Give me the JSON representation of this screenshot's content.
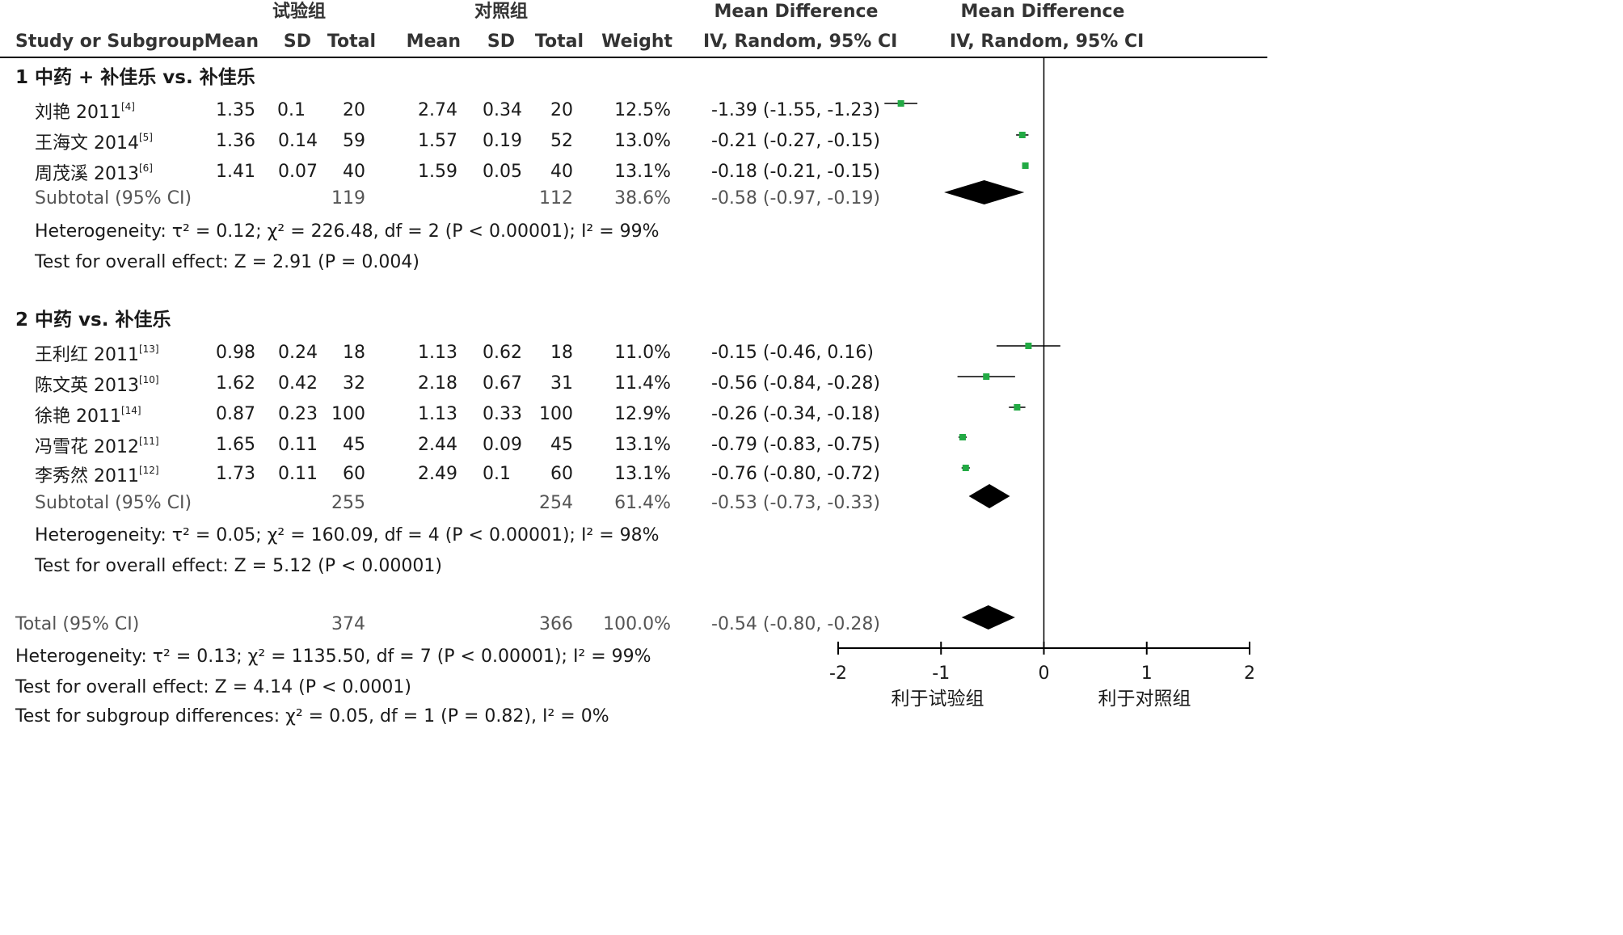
{
  "headers": {
    "group_exp": "试验组",
    "group_ctrl": "对照组",
    "study": "Study or Subgroup",
    "mean": "Mean",
    "sd": "SD",
    "total": "Total",
    "weight": "Weight",
    "md_title": "Mean Difference",
    "md_method": "IV, Random, 95% CI",
    "plot_title": "Mean Difference",
    "plot_method": "IV, Random, 95% CI"
  },
  "subgroups": [
    {
      "title": "1 中药 + 补佳乐 vs. 补佳乐",
      "studies": [
        {
          "name": "刘艳 2011",
          "ref": "[4]",
          "exp_mean": "1.35",
          "exp_sd": "0.1",
          "exp_total": "20",
          "ctrl_mean": "2.74",
          "ctrl_sd": "0.34",
          "ctrl_total": "20",
          "weight": "12.5%",
          "ci_text": "-1.39 (-1.55, -1.23)"
        },
        {
          "name": "王海文 2014",
          "ref": "[5]",
          "exp_mean": "1.36",
          "exp_sd": "0.14",
          "exp_total": "59",
          "ctrl_mean": "1.57",
          "ctrl_sd": "0.19",
          "ctrl_total": "52",
          "weight": "13.0%",
          "ci_text": "-0.21 (-0.27, -0.15)"
        },
        {
          "name": "周茂溪 2013",
          "ref": "[6]",
          "exp_mean": "1.41",
          "exp_sd": "0.07",
          "exp_total": "40",
          "ctrl_mean": "1.59",
          "ctrl_sd": "0.05",
          "ctrl_total": "40",
          "weight": "13.1%",
          "ci_text": "-0.18 (-0.21, -0.15)"
        }
      ],
      "subtotal": {
        "label": "Subtotal (95% CI)",
        "exp_total": "119",
        "ctrl_total": "112",
        "weight": "38.6%",
        "ci_text": "-0.58 (-0.97, -0.19)"
      },
      "heterogeneity": "Heterogeneity: τ² = 0.12; χ² = 226.48, df = 2 (P < 0.00001); I² = 99%",
      "overall": "Test for overall effect: Z = 2.91 (P = 0.004)"
    },
    {
      "title": "2 中药 vs. 补佳乐",
      "studies": [
        {
          "name": "王利红 2011",
          "ref": "[13]",
          "exp_mean": "0.98",
          "exp_sd": "0.24",
          "exp_total": "18",
          "ctrl_mean": "1.13",
          "ctrl_sd": "0.62",
          "ctrl_total": "18",
          "weight": "11.0%",
          "ci_text": "-0.15 (-0.46, 0.16)"
        },
        {
          "name": "陈文英 2013",
          "ref": "[10]",
          "exp_mean": "1.62",
          "exp_sd": "0.42",
          "exp_total": "32",
          "ctrl_mean": "2.18",
          "ctrl_sd": "0.67",
          "ctrl_total": "31",
          "weight": "11.4%",
          "ci_text": "-0.56 (-0.84, -0.28)"
        },
        {
          "name": "徐艳 2011",
          "ref": "[14]",
          "exp_mean": "0.87",
          "exp_sd": "0.23",
          "exp_total": "100",
          "ctrl_mean": "1.13",
          "ctrl_sd": "0.33",
          "ctrl_total": "100",
          "weight": "12.9%",
          "ci_text": "-0.26 (-0.34, -0.18)"
        },
        {
          "name": "冯雪花 2012",
          "ref": "[11]",
          "exp_mean": "1.65",
          "exp_sd": "0.11",
          "exp_total": "45",
          "ctrl_mean": "2.44",
          "ctrl_sd": "0.09",
          "ctrl_total": "45",
          "weight": "13.1%",
          "ci_text": "-0.79 (-0.83, -0.75)"
        },
        {
          "name": "李秀然 2011",
          "ref": "[12]",
          "exp_mean": "1.73",
          "exp_sd": "0.11",
          "exp_total": "60",
          "ctrl_mean": "2.49",
          "ctrl_sd": "0.1",
          "ctrl_total": "60",
          "weight": "13.1%",
          "ci_text": "-0.76 (-0.80, -0.72)"
        }
      ],
      "subtotal": {
        "label": "Subtotal (95% CI)",
        "exp_total": "255",
        "ctrl_total": "254",
        "weight": "61.4%",
        "ci_text": "-0.53 (-0.73, -0.33)"
      },
      "heterogeneity": "Heterogeneity: τ² = 0.05; χ² = 160.09, df = 4 (P < 0.00001); I² = 98%",
      "overall": "Test for overall effect: Z = 5.12 (P < 0.00001)"
    }
  ],
  "total": {
    "label": "Total (95% CI)",
    "exp_total": "374",
    "ctrl_total": "366",
    "weight": "100.0%",
    "ci_text": "-0.54 (-0.80, -0.28)"
  },
  "footer": {
    "heterogeneity": "Heterogeneity: τ² = 0.13; χ² = 1135.50, df = 7 (P < 0.00001); I² = 99%",
    "overall": "Test for overall effect: Z = 4.14 (P < 0.0001)",
    "subgroup_diff": "Test for subgroup differences: χ² = 0.05, df = 1 (P = 0.82), I² = 0%"
  },
  "axis_labels": {
    "left": "利于试验组",
    "right": "利于对照组"
  },
  "colors": {
    "point": "#22aa44",
    "diamond": "#000000",
    "line": "#000000"
  },
  "chart_data": {
    "type": "forest",
    "xlim": [
      -2,
      2
    ],
    "ticks": [
      -2,
      -1,
      0,
      1,
      2
    ],
    "tick_labels": [
      "-2",
      "-1",
      "0",
      "1",
      "2"
    ],
    "points": [
      {
        "study": "刘艳 2011",
        "md": -1.39,
        "lower": -1.55,
        "upper": -1.23,
        "weight": 12.5
      },
      {
        "study": "王海文 2014",
        "md": -0.21,
        "lower": -0.27,
        "upper": -0.15,
        "weight": 13.0
      },
      {
        "study": "周茂溪 2013",
        "md": -0.18,
        "lower": -0.21,
        "upper": -0.15,
        "weight": 13.1
      },
      {
        "study": "王利红 2011",
        "md": -0.15,
        "lower": -0.46,
        "upper": 0.16,
        "weight": 11.0
      },
      {
        "study": "陈文英 2013",
        "md": -0.56,
        "lower": -0.84,
        "upper": -0.28,
        "weight": 11.4
      },
      {
        "study": "徐艳 2011",
        "md": -0.26,
        "lower": -0.34,
        "upper": -0.18,
        "weight": 12.9
      },
      {
        "study": "冯雪花 2012",
        "md": -0.79,
        "lower": -0.83,
        "upper": -0.75,
        "weight": 13.1
      },
      {
        "study": "李秀然 2011",
        "md": -0.76,
        "lower": -0.8,
        "upper": -0.72,
        "weight": 13.1
      }
    ],
    "diamonds": [
      {
        "label": "Subtotal 1",
        "md": -0.58,
        "lower": -0.97,
        "upper": -0.19
      },
      {
        "label": "Subtotal 2",
        "md": -0.53,
        "lower": -0.73,
        "upper": -0.33
      },
      {
        "label": "Total",
        "md": -0.54,
        "lower": -0.8,
        "upper": -0.28
      }
    ]
  }
}
